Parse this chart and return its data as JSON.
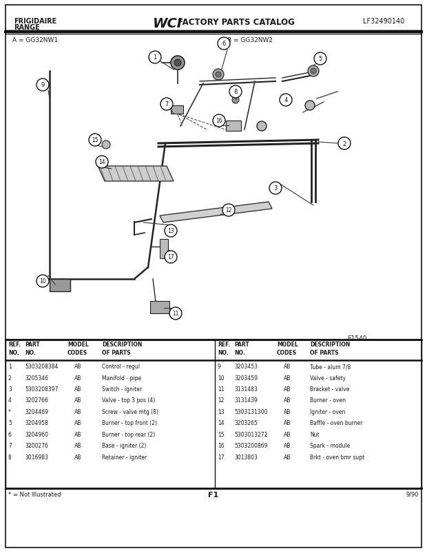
{
  "title_left1": "FRIGIDAIRE",
  "title_left2": "RANGE",
  "title_right": "LF32490140",
  "diagram_label_left": "A = GG32NW1",
  "diagram_label_right": "B = GG32NW2",
  "diagram_code": "E1540",
  "page_label": "F1",
  "date_label": "9/90",
  "footnote": "* = Not Illustrated",
  "bg_color": "#ffffff",
  "text_color": "#1a1a1a",
  "left_table": [
    [
      "1",
      "5303208384",
      "AB",
      "Control - regul"
    ],
    [
      "2",
      "3205346",
      "AB",
      "Manifold - pipe"
    ],
    [
      "3",
      "5303208397",
      "AB",
      "Switch - igniter"
    ],
    [
      "4",
      "3202766",
      "AB",
      "Valve - top 3 pos (4)"
    ],
    [
      "*",
      "3204469",
      "AB",
      "Screw - valve mtg (8)"
    ],
    [
      "5",
      "3204958",
      "AB",
      "Burner - top front (2)"
    ],
    [
      "6",
      "3204960",
      "AB",
      "Burner - top rear (2)"
    ],
    [
      "7",
      "3200276",
      "AB",
      "Base - igniter (2)"
    ],
    [
      "8",
      "3016983",
      "AB",
      "Retainer - igniter"
    ]
  ],
  "right_table": [
    [
      "9",
      "3203453",
      "AB",
      "Tube - alum 7/8"
    ],
    [
      "10",
      "3203459",
      "AB",
      "Valve - safety"
    ],
    [
      "11",
      "3131483",
      "AB",
      "Bracket - valve"
    ],
    [
      "12",
      "3131439",
      "AB",
      "Burner - oven"
    ],
    [
      "13",
      "5303131300",
      "AB",
      "Igniter - oven"
    ],
    [
      "14",
      "3203265",
      "AB",
      "Baffle - oven burner"
    ],
    [
      "15",
      "5303013272",
      "AB",
      "Nut"
    ],
    [
      "16",
      "5303200869",
      "AB",
      "Spark - module"
    ],
    [
      "17",
      "3013803",
      "AB",
      "Brkt - oven bmr supt"
    ]
  ]
}
